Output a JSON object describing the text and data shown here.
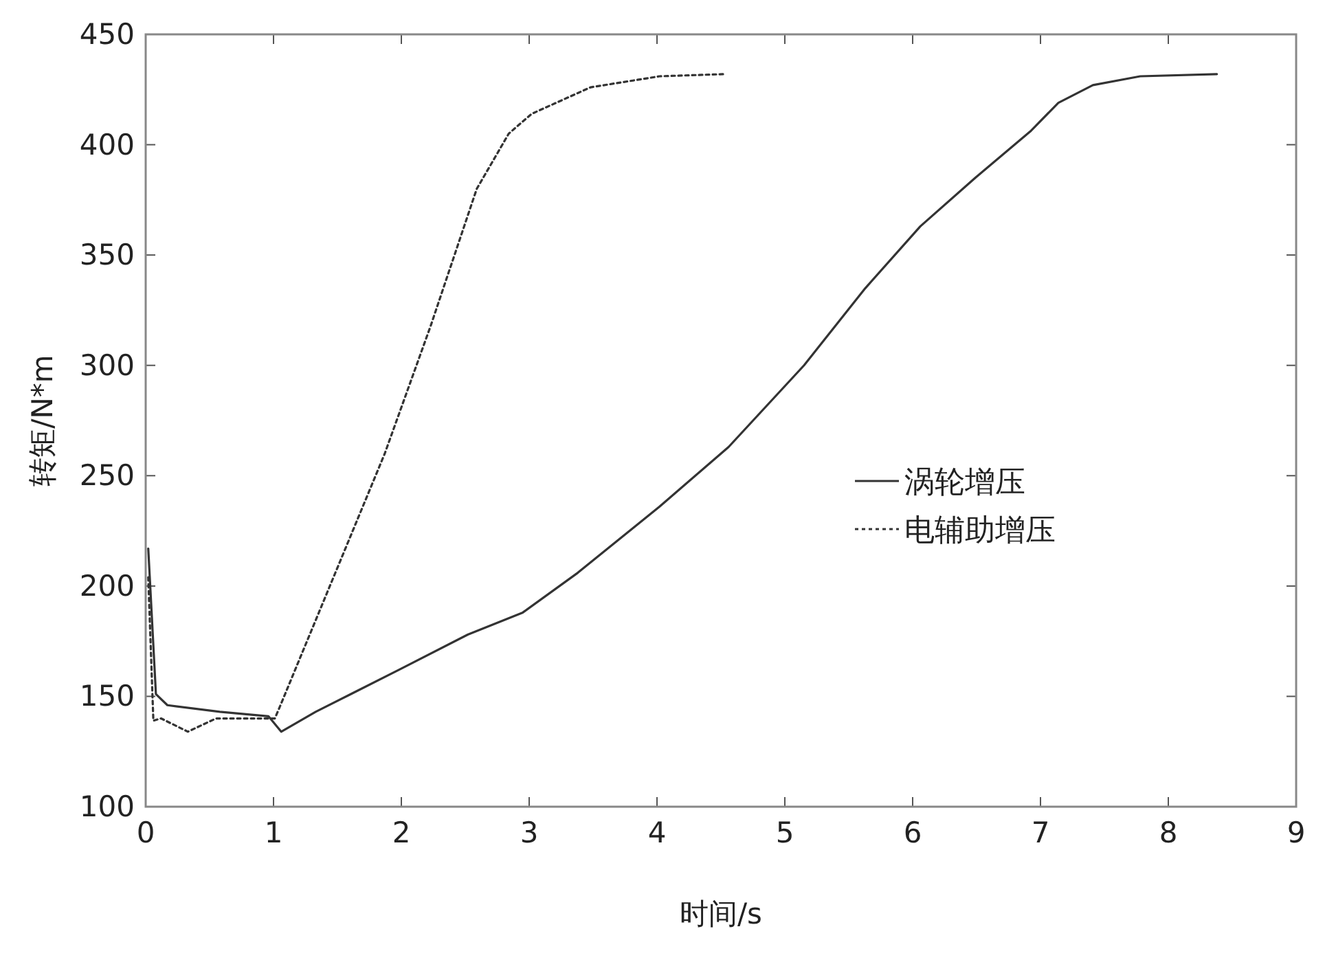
{
  "chart_data": {
    "type": "line",
    "xlabel": "时间/s",
    "ylabel": "转矩/N*m",
    "xlim": [
      0,
      9
    ],
    "ylim": [
      100,
      450
    ],
    "xticks": [
      0,
      1,
      2,
      3,
      4,
      5,
      6,
      7,
      8,
      9
    ],
    "yticks": [
      100,
      150,
      200,
      250,
      300,
      350,
      400,
      450
    ],
    "grid": false,
    "legend": "right",
    "marker": "none",
    "series": [
      {
        "name": "涡轮增压",
        "color": "#333333",
        "line_style": "solid",
        "x": [
          0.02,
          0.08,
          0.17,
          0.58,
          0.96,
          1.06,
          1.33,
          1.98,
          2.52,
          2.95,
          3.38,
          4.02,
          4.56,
          5.15,
          5.63,
          6.06,
          6.49,
          6.92,
          7.14,
          7.41,
          7.78,
          8.38
        ],
        "values": [
          217,
          151,
          146,
          143,
          141,
          134,
          143,
          162,
          178,
          188,
          206,
          236,
          263,
          300,
          335,
          363,
          385,
          406,
          419,
          427,
          431,
          432
        ]
      },
      {
        "name": "电辅助增压",
        "color": "#333333",
        "line_style": "dotted",
        "x": [
          0.02,
          0.06,
          0.12,
          0.33,
          0.55,
          1.01,
          1.04,
          1.87,
          2.23,
          2.59,
          2.84,
          3.02,
          3.48,
          4.02,
          4.53
        ],
        "values": [
          204,
          139,
          140,
          134,
          140,
          140,
          144,
          260,
          318,
          380,
          405,
          414,
          426,
          431,
          432
        ]
      }
    ]
  }
}
